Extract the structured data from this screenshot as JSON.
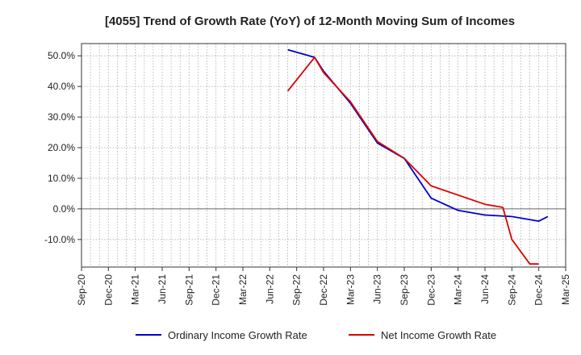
{
  "chart_data": {
    "type": "line",
    "title": "[4055]  Trend of Growth Rate (YoY) of 12-Month Moving Sum of Incomes",
    "xlabel": "",
    "ylabel": "",
    "x_ticks": [
      "Sep-20",
      "Dec-20",
      "Mar-21",
      "Jun-21",
      "Sep-21",
      "Dec-21",
      "Mar-22",
      "Jun-22",
      "Sep-22",
      "Dec-22",
      "Mar-23",
      "Jun-23",
      "Sep-23",
      "Dec-23",
      "Mar-24",
      "Jun-24",
      "Sep-24",
      "Dec-24",
      "Mar-25"
    ],
    "y_ticks": [
      50,
      40,
      30,
      20,
      10,
      0,
      -10
    ],
    "y_tick_labels": [
      "50.0%",
      "40.0%",
      "30.0%",
      "20.0%",
      "10.0%",
      "0.0%",
      "-10.0%"
    ],
    "ylim": [
      -19,
      54
    ],
    "x_range_months": [
      0,
      54
    ],
    "grid": true,
    "legend_position": "bottom",
    "series": [
      {
        "name": "Ordinary Income Growth Rate",
        "color": "#0000cc",
        "x": [
          "Aug-22",
          "Nov-22",
          "Dec-22",
          "Mar-23",
          "Jun-23",
          "Sep-23",
          "Dec-23",
          "Mar-24",
          "Jun-24",
          "Sep-24",
          "Dec-24",
          "Jan-25"
        ],
        "x_months": [
          23,
          26,
          27,
          30,
          33,
          36,
          39,
          42,
          45,
          48,
          51,
          52
        ],
        "values": [
          52.0,
          49.5,
          45.0,
          34.5,
          21.5,
          16.5,
          3.5,
          -0.5,
          -2.0,
          -2.5,
          -4.0,
          -2.5
        ]
      },
      {
        "name": "Net Income Growth Rate",
        "color": "#dd0000",
        "x": [
          "Aug-22",
          "Nov-22",
          "Dec-22",
          "Mar-23",
          "Jun-23",
          "Sep-23",
          "Dec-23",
          "Mar-24",
          "Jun-24",
          "Aug-24",
          "Sep-24",
          "Nov-24",
          "Dec-24"
        ],
        "x_months": [
          23,
          26,
          27,
          30,
          33,
          36,
          39,
          42,
          45,
          47,
          48,
          50,
          51
        ],
        "values": [
          38.5,
          49.5,
          44.5,
          35.0,
          22.0,
          16.5,
          7.5,
          4.5,
          1.5,
          0.5,
          -10.0,
          -18.0,
          -18.0
        ]
      }
    ]
  }
}
